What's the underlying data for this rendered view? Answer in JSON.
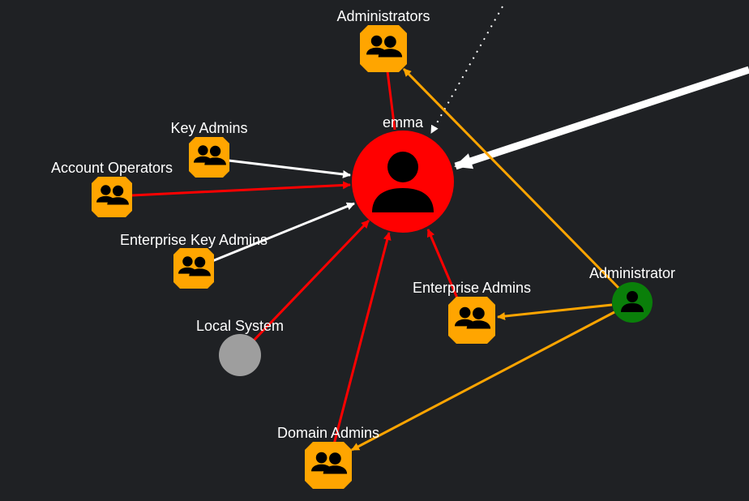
{
  "colors": {
    "background": "#1f2124",
    "group_node": "#ffa500",
    "target_user": "#ff0000",
    "admin_user": "#0a7f0a",
    "system_node": "#9e9e9e",
    "edge_red": "#ff0000",
    "edge_white": "#ffffff",
    "edge_orange": "#ffa500",
    "icon": "#000000"
  },
  "nodes": {
    "administrators": {
      "label": "Administrators",
      "icon": "group-icon"
    },
    "emma": {
      "label": "emma",
      "icon": "user-icon"
    },
    "key_admins": {
      "label": "Key Admins",
      "icon": "group-icon"
    },
    "account_operators": {
      "label": "Account Operators",
      "icon": "group-icon"
    },
    "enterprise_key_admins": {
      "label": "Enterprise Key Admins",
      "icon": "group-icon"
    },
    "local_system": {
      "label": "Local System",
      "icon": "none"
    },
    "enterprise_admins": {
      "label": "Enterprise Admins",
      "icon": "group-icon"
    },
    "administrator": {
      "label": "Administrator",
      "icon": "user-icon"
    },
    "domain_admins": {
      "label": "Domain Admins",
      "icon": "group-icon"
    }
  }
}
